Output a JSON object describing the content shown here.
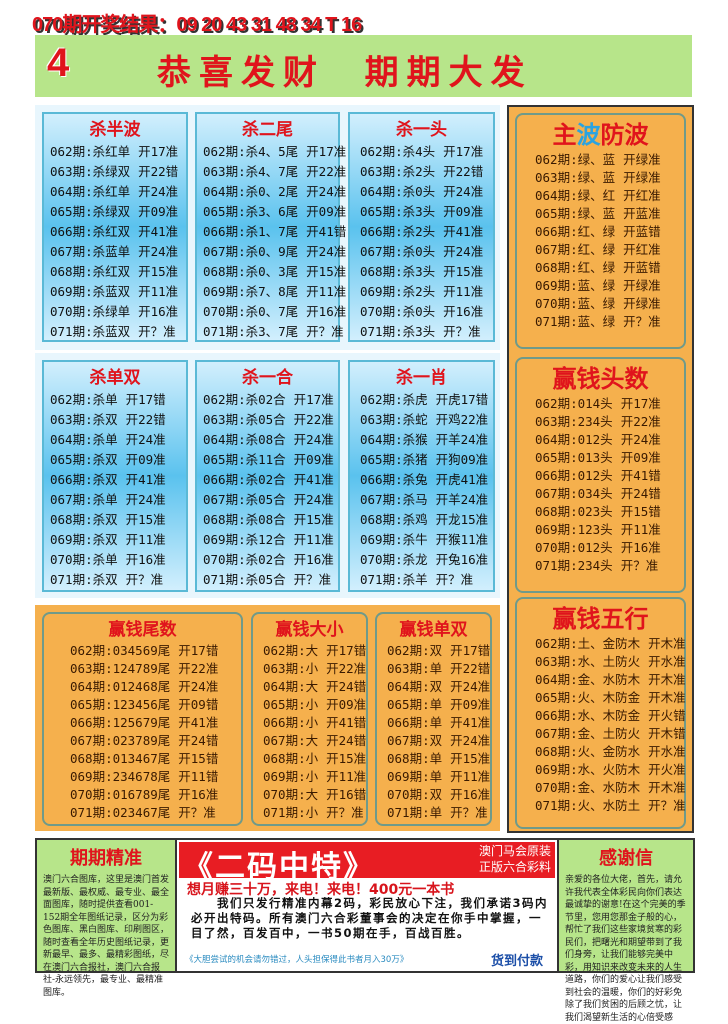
{
  "header": {
    "result_line": "070期开奖结果：09 20 43 31 48 34 T 16",
    "banner_number": "4",
    "banner_slogan": "恭喜发财  期期大发"
  },
  "blue_section_1": [
    {
      "title": "杀半波",
      "rows": [
        {
          "issue": "062期:",
          "pick": "杀红单",
          "result": "开17准"
        },
        {
          "issue": "063期:",
          "pick": "杀绿双",
          "result": "开22错"
        },
        {
          "issue": "064期:",
          "pick": "杀红单",
          "result": "开24准"
        },
        {
          "issue": "065期:",
          "pick": "杀绿双",
          "result": "开09准"
        },
        {
          "issue": "066期:",
          "pick": "杀红双",
          "result": "开41准"
        },
        {
          "issue": "067期:",
          "pick": "杀蓝单",
          "result": "开24准"
        },
        {
          "issue": "068期:",
          "pick": "杀红双",
          "result": "开15准"
        },
        {
          "issue": "069期:",
          "pick": "杀蓝双",
          "result": "开11准"
        },
        {
          "issue": "070期:",
          "pick": "杀绿单",
          "result": "开16准"
        },
        {
          "issue": "071期:",
          "pick": "杀蓝双",
          "result": "开？准"
        }
      ]
    },
    {
      "title": "杀二尾",
      "rows": [
        {
          "issue": "062期:",
          "pick": "杀4、5尾",
          "result": "开17准"
        },
        {
          "issue": "063期:",
          "pick": "杀4、7尾",
          "result": "开22准"
        },
        {
          "issue": "064期:",
          "pick": "杀0、2尾",
          "result": "开24准"
        },
        {
          "issue": "065期:",
          "pick": "杀3、6尾",
          "result": "开09准"
        },
        {
          "issue": "066期:",
          "pick": "杀1、7尾",
          "result": "开41错"
        },
        {
          "issue": "067期:",
          "pick": "杀0、9尾",
          "result": "开24准"
        },
        {
          "issue": "068期:",
          "pick": "杀0、3尾",
          "result": "开15准"
        },
        {
          "issue": "069期:",
          "pick": "杀7、8尾",
          "result": "开11准"
        },
        {
          "issue": "070期:",
          "pick": "杀0、7尾",
          "result": "开16准"
        },
        {
          "issue": "071期:",
          "pick": "杀3、7尾",
          "result": "开？准"
        }
      ]
    },
    {
      "title": "杀一头",
      "rows": [
        {
          "issue": "062期:",
          "pick": "杀4头",
          "result": "开17准"
        },
        {
          "issue": "063期:",
          "pick": "杀2头",
          "result": "开22错"
        },
        {
          "issue": "064期:",
          "pick": "杀0头",
          "result": "开24准"
        },
        {
          "issue": "065期:",
          "pick": "杀3头",
          "result": "开09准"
        },
        {
          "issue": "066期:",
          "pick": "杀2头",
          "result": "开41准"
        },
        {
          "issue": "067期:",
          "pick": "杀0头",
          "result": "开24准"
        },
        {
          "issue": "068期:",
          "pick": "杀3头",
          "result": "开15准"
        },
        {
          "issue": "069期:",
          "pick": "杀2头",
          "result": "开11准"
        },
        {
          "issue": "070期:",
          "pick": "杀0头",
          "result": "开16准"
        },
        {
          "issue": "071期:",
          "pick": "杀3头",
          "result": "开？准"
        }
      ]
    }
  ],
  "blue_section_2": [
    {
      "title": "杀单双",
      "rows": [
        {
          "issue": "062期:",
          "pick": "杀单",
          "result": "开17错"
        },
        {
          "issue": "063期:",
          "pick": "杀双",
          "result": "开22错"
        },
        {
          "issue": "064期:",
          "pick": "杀单",
          "result": "开24准"
        },
        {
          "issue": "065期:",
          "pick": "杀双",
          "result": "开09准"
        },
        {
          "issue": "066期:",
          "pick": "杀双",
          "result": "开41准"
        },
        {
          "issue": "067期:",
          "pick": "杀单",
          "result": "开24准"
        },
        {
          "issue": "068期:",
          "pick": "杀双",
          "result": "开15准"
        },
        {
          "issue": "069期:",
          "pick": "杀双",
          "result": "开11准"
        },
        {
          "issue": "070期:",
          "pick": "杀单",
          "result": "开16准"
        },
        {
          "issue": "071期:",
          "pick": "杀双",
          "result": "开？准"
        }
      ]
    },
    {
      "title": "杀一合",
      "rows": [
        {
          "issue": "062期:",
          "pick": "杀02合",
          "result": "开17准"
        },
        {
          "issue": "063期:",
          "pick": "杀05合",
          "result": "开22准"
        },
        {
          "issue": "064期:",
          "pick": "杀08合",
          "result": "开24准"
        },
        {
          "issue": "065期:",
          "pick": "杀11合",
          "result": "开09准"
        },
        {
          "issue": "066期:",
          "pick": "杀02合",
          "result": "开41准"
        },
        {
          "issue": "067期:",
          "pick": "杀05合",
          "result": "开24准"
        },
        {
          "issue": "068期:",
          "pick": "杀08合",
          "result": "开15准"
        },
        {
          "issue": "069期:",
          "pick": "杀12合",
          "result": "开11准"
        },
        {
          "issue": "070期:",
          "pick": "杀02合",
          "result": "开16准"
        },
        {
          "issue": "071期:",
          "pick": "杀05合",
          "result": "开？准"
        }
      ]
    },
    {
      "title": "杀一肖",
      "rows": [
        {
          "issue": "062期:",
          "pick": "杀虎",
          "result": "开虎17错"
        },
        {
          "issue": "063期:",
          "pick": "杀蛇",
          "result": "开鸡22准"
        },
        {
          "issue": "064期:",
          "pick": "杀猴",
          "result": "开羊24准"
        },
        {
          "issue": "065期:",
          "pick": "杀猪",
          "result": "开狗09准"
        },
        {
          "issue": "066期:",
          "pick": "杀兔",
          "result": "开虎41准"
        },
        {
          "issue": "067期:",
          "pick": "杀马",
          "result": "开羊24准"
        },
        {
          "issue": "068期:",
          "pick": "杀鸡",
          "result": "开龙15准"
        },
        {
          "issue": "069期:",
          "pick": "杀牛",
          "result": "开猴11准"
        },
        {
          "issue": "070期:",
          "pick": "杀龙",
          "result": "开兔16准"
        },
        {
          "issue": "071期:",
          "pick": "杀羊",
          "result": "开？准"
        }
      ]
    }
  ],
  "orange_section": [
    {
      "title": "赢钱尾数",
      "rows": [
        {
          "issue": "062期:",
          "pick": "034569尾",
          "result": "开17错"
        },
        {
          "issue": "063期:",
          "pick": "124789尾",
          "result": "开22准"
        },
        {
          "issue": "064期:",
          "pick": "012468尾",
          "result": "开24准"
        },
        {
          "issue": "065期:",
          "pick": "123456尾",
          "result": "开09错"
        },
        {
          "issue": "066期:",
          "pick": "125679尾",
          "result": "开41准"
        },
        {
          "issue": "067期:",
          "pick": "023789尾",
          "result": "开24错"
        },
        {
          "issue": "068期:",
          "pick": "013467尾",
          "result": "开15错"
        },
        {
          "issue": "069期:",
          "pick": "234678尾",
          "result": "开11错"
        },
        {
          "issue": "070期:",
          "pick": "016789尾",
          "result": "开16准"
        },
        {
          "issue": "071期:",
          "pick": "023467尾",
          "result": "开？准"
        }
      ]
    },
    {
      "title": "赢钱大小",
      "rows": [
        {
          "issue": "062期:",
          "pick": "大",
          "result": "开17错"
        },
        {
          "issue": "063期:",
          "pick": "小",
          "result": "开22准"
        },
        {
          "issue": "064期:",
          "pick": "大",
          "result": "开24错"
        },
        {
          "issue": "065期:",
          "pick": "小",
          "result": "开09准"
        },
        {
          "issue": "066期:",
          "pick": "小",
          "result": "开41错"
        },
        {
          "issue": "067期:",
          "pick": "大",
          "result": "开24错"
        },
        {
          "issue": "068期:",
          "pick": "小",
          "result": "开15准"
        },
        {
          "issue": "069期:",
          "pick": "小",
          "result": "开11准"
        },
        {
          "issue": "070期:",
          "pick": "大",
          "result": "开16错"
        },
        {
          "issue": "071期:",
          "pick": "小",
          "result": "开？准"
        }
      ]
    },
    {
      "title": "赢钱单双",
      "rows": [
        {
          "issue": "062期:",
          "pick": "双",
          "result": "开17错"
        },
        {
          "issue": "063期:",
          "pick": "单",
          "result": "开22错"
        },
        {
          "issue": "064期:",
          "pick": "双",
          "result": "开24准"
        },
        {
          "issue": "065期:",
          "pick": "单",
          "result": "开09准"
        },
        {
          "issue": "066期:",
          "pick": "单",
          "result": "开41准"
        },
        {
          "issue": "067期:",
          "pick": "双",
          "result": "开24准"
        },
        {
          "issue": "068期:",
          "pick": "单",
          "result": "开15准"
        },
        {
          "issue": "069期:",
          "pick": "单",
          "result": "开11准"
        },
        {
          "issue": "070期:",
          "pick": "双",
          "result": "开16准"
        },
        {
          "issue": "071期:",
          "pick": "单",
          "result": "开？准"
        }
      ]
    }
  ],
  "right_column": [
    {
      "title": "主波防波",
      "title_parts": [
        "主",
        "波",
        "防波"
      ],
      "title_colors": [
        "#e0141c",
        "#2aa3e0",
        "#e0141c"
      ],
      "rows": [
        {
          "issue": "062期:",
          "pick": "绿、蓝",
          "result": "开绿准"
        },
        {
          "issue": "063期:",
          "pick": "绿、蓝",
          "result": "开绿准"
        },
        {
          "issue": "064期:",
          "pick": "绿、红",
          "result": "开红准"
        },
        {
          "issue": "065期:",
          "pick": "绿、蓝",
          "result": "开蓝准"
        },
        {
          "issue": "066期:",
          "pick": "红、绿",
          "result": "开蓝错"
        },
        {
          "issue": "067期:",
          "pick": "红、绿",
          "result": "开红准"
        },
        {
          "issue": "068期:",
          "pick": "红、绿",
          "result": "开蓝错"
        },
        {
          "issue": "069期:",
          "pick": "蓝、绿",
          "result": "开绿准"
        },
        {
          "issue": "070期:",
          "pick": "蓝、绿",
          "result": "开绿准"
        },
        {
          "issue": "071期:",
          "pick": "蓝、绿",
          "result": "开？准"
        }
      ]
    },
    {
      "title": "赢钱头数",
      "rows": [
        {
          "issue": "062期:",
          "pick": "014头",
          "result": "开17准"
        },
        {
          "issue": "063期:",
          "pick": "234头",
          "result": "开22准"
        },
        {
          "issue": "064期:",
          "pick": "012头",
          "result": "开24准"
        },
        {
          "issue": "065期:",
          "pick": "013头",
          "result": "开09准"
        },
        {
          "issue": "066期:",
          "pick": "012头",
          "result": "开41错"
        },
        {
          "issue": "067期:",
          "pick": "034头",
          "result": "开24错"
        },
        {
          "issue": "068期:",
          "pick": "023头",
          "result": "开15错"
        },
        {
          "issue": "069期:",
          "pick": "123头",
          "result": "开11准"
        },
        {
          "issue": "070期:",
          "pick": "012头",
          "result": "开16准"
        },
        {
          "issue": "071期:",
          "pick": "234头",
          "result": "开？准"
        }
      ]
    },
    {
      "title": "赢钱五行",
      "rows": [
        {
          "issue": "062期:",
          "pick": "土、金防木",
          "result": "开木准"
        },
        {
          "issue": "063期:",
          "pick": "水、土防火",
          "result": "开水准"
        },
        {
          "issue": "064期:",
          "pick": "金、水防木",
          "result": "开木准"
        },
        {
          "issue": "065期:",
          "pick": "火、木防金",
          "result": "开木准"
        },
        {
          "issue": "066期:",
          "pick": "水、木防金",
          "result": "开火错"
        },
        {
          "issue": "067期:",
          "pick": "金、土防火",
          "result": "开木错"
        },
        {
          "issue": "068期:",
          "pick": "火、金防水",
          "result": "开水准"
        },
        {
          "issue": "069期:",
          "pick": "水、火防木",
          "result": "开火准"
        },
        {
          "issue": "070期:",
          "pick": "金、水防木",
          "result": "开木准"
        },
        {
          "issue": "071期:",
          "pick": "火、水防土",
          "result": "开？准"
        }
      ]
    }
  ],
  "bottom": {
    "left": {
      "title": "期期精准",
      "text": "澳门六合图库，这里是澳门首发最新版、最权威、最专业、最全面图库，随时提供查看001-152期全年图纸记录，区分为彩色图库、黑白图库、印刷图区，随时查看全年历史图纸记录，更新最早、最多、最精彩图纸，尽在澳门六合报社，澳门六合报社-永远领先，最专业、最精准图库。"
    },
    "center": {
      "ad_title": "《二码中特》",
      "ad_side_1": "澳门马会原装",
      "ad_side_2": "正版六合彩料",
      "headline": "想月赚三十万，来电！来电！400元一本书",
      "body": "　　我们只发行精准内幕2码，彩民放心下注，我们承诺3码内必开出特码。所有澳门六合彩董事会的决定在你手中掌握，一目了然，百发百中，一书50期在手，百战百胜。",
      "footnote": "《大胆尝试的机会请勿错过，人头担保得此书者月入30万》",
      "cod": "货到付款"
    },
    "right": {
      "title": "感谢信",
      "text": "亲爱的各位大佬，首先，请允许我代表全体彩民向你们表达最诚挚的谢意!在这个完美的季节里，您用您那金子般的心，帮忙了我们这些家境贫寒的彩民们，把曙光和期望带到了我们身旁，让我们能够完美中彩，用知识来改变未来的人生道路，你们的爱心让我们感受到社会的温暖，你们的好彩免除了我们贫困的后顾之忧，让我们渴望新生活的心倍受感"
    }
  },
  "colors": {
    "red": "#e0141c",
    "banner_green": "#b7e58a",
    "orange": "#f5b04d",
    "blue": "#5ac2ee"
  }
}
